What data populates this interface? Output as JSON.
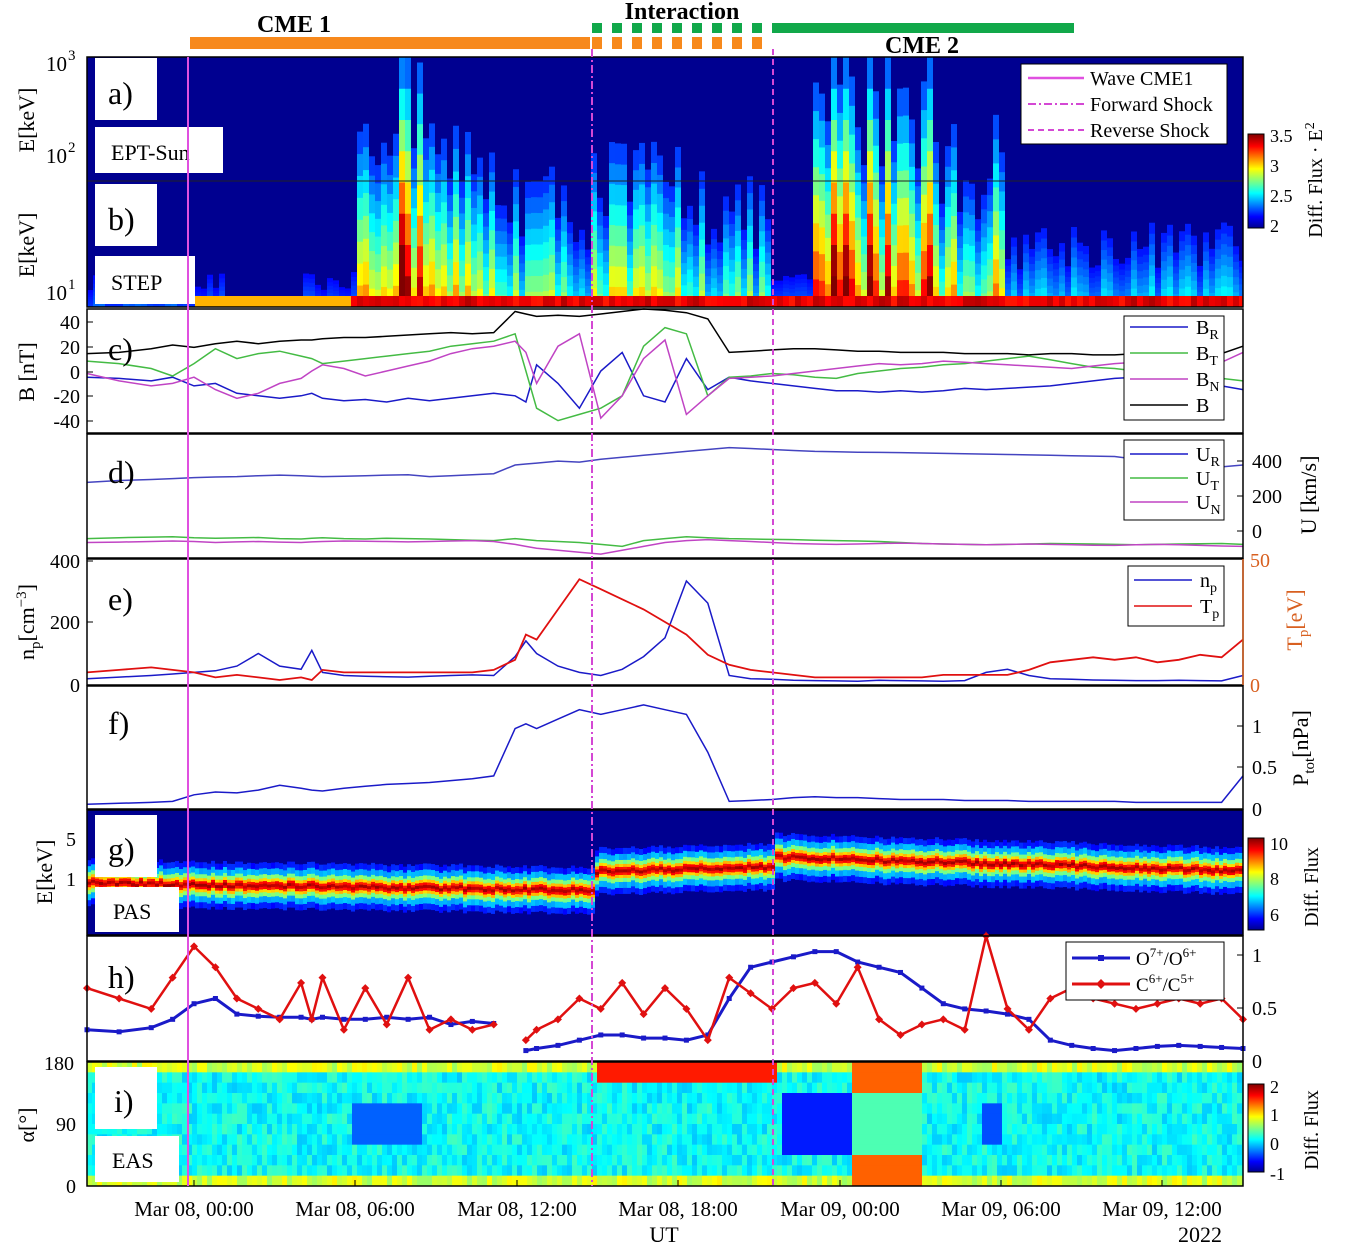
{
  "colors": {
    "cme1": "#f7891c",
    "cme2": "#11a84a",
    "wave": "#e050e0",
    "shock": "#d448d4",
    "red": "#e01010",
    "blue": "#1a1ac8",
    "green": "#44bb44",
    "purple": "#c044c4",
    "tp_axis": "#d86020"
  },
  "header": {
    "cme1_label": "CME 1",
    "interaction_label": "Interaction",
    "cme2_label": "CME 2"
  },
  "time_axis": {
    "tick_labels": [
      "Mar 08, 00:00",
      "Mar 08, 06:00",
      "Mar 08, 12:00",
      "Mar 08, 18:00",
      "Mar 09, 00:00",
      "Mar 09, 06:00",
      "Mar 09, 12:00"
    ],
    "xlabel": "UT",
    "year": "2022"
  },
  "events": {
    "wave_cme1": "Wave CME1",
    "forward_shock": "Forward Shock",
    "reverse_shock": "Reverse Shock"
  },
  "panels": {
    "a": {
      "letter": "a)",
      "instrument": "EPT-Sun",
      "ylabel": "E[keV]",
      "yticks": [
        "10",
        "10"
      ],
      "yexp": [
        "3",
        "2"
      ]
    },
    "b": {
      "letter": "b)",
      "instrument": "STEP",
      "ylabel": "E[keV]",
      "yticks": [
        "10"
      ],
      "yexp": [
        "1"
      ]
    },
    "ab_colorbar": {
      "label": "Diff. Flux · E",
      "label_exp": "2",
      "ticks": [
        "3.5",
        "3",
        "2.5",
        "2"
      ]
    },
    "c": {
      "letter": "c)",
      "ylabel": "B [nT]",
      "yticks": [
        "40",
        "20",
        "0",
        "-20",
        "-40"
      ],
      "legend": [
        {
          "base": "B",
          "sub": "R"
        },
        {
          "base": "B",
          "sub": "T"
        },
        {
          "base": "B",
          "sub": "N"
        },
        {
          "base": "B",
          "sub": ""
        }
      ]
    },
    "d": {
      "letter": "d)",
      "ylabel": "U [km/s]",
      "yticks": [
        "400",
        "200",
        "0"
      ],
      "legend": [
        {
          "base": "U",
          "sub": "R"
        },
        {
          "base": "U",
          "sub": "T"
        },
        {
          "base": "U",
          "sub": "N"
        }
      ]
    },
    "e": {
      "letter": "e)",
      "ylabel_base": "n",
      "ylabel_sub": "p",
      "ylabel_unit": "[cm",
      "ylabel_exp": "−3",
      "ylabel_close": "]",
      "yticks": [
        "400",
        "200",
        "0"
      ],
      "right_ylabel_base": "T",
      "right_ylabel_sub": "p",
      "right_ylabel_unit": "[eV]",
      "right_yticks": [
        "50",
        "0"
      ],
      "legend": [
        {
          "base": "n",
          "sub": "p"
        },
        {
          "base": "T",
          "sub": "p"
        }
      ]
    },
    "f": {
      "letter": "f)",
      "ylabel_base": "P",
      "ylabel_sub": "tot",
      "ylabel_unit": "[nPa]",
      "yticks": [
        "1",
        "0.5",
        "0"
      ]
    },
    "g": {
      "letter": "g)",
      "instrument": "PAS",
      "ylabel": "E[keV]",
      "yticks": [
        "5",
        "1"
      ],
      "colorbar": {
        "label": "Diff. Flux",
        "ticks": [
          "10",
          "8",
          "6"
        ]
      }
    },
    "h": {
      "letter": "h)",
      "yticks": [
        "1",
        "0.5",
        "0"
      ],
      "legend": [
        {
          "a": "O",
          "ae": "7+",
          "b": "O",
          "be": "6+"
        },
        {
          "a": "C",
          "ae": "6+",
          "b": "C",
          "be": "5+"
        }
      ]
    },
    "i": {
      "letter": "i)",
      "instrument": "EAS",
      "ylabel": "α[°]",
      "yticks": [
        "180",
        "90",
        "0"
      ],
      "colorbar": {
        "label": "Diff. Flux",
        "ticks": [
          "2",
          "1",
          "0",
          "-1"
        ]
      }
    }
  },
  "chart_data": {
    "type": "line",
    "title": "",
    "time_range": [
      "2022-03-07 18:00",
      "2022-03-09 16:30"
    ],
    "vertical_lines": [
      {
        "name": "Wave CME1",
        "time": "2022-03-07 23:50"
      },
      {
        "name": "Forward Shock",
        "time": "2022-03-08 14:40"
      },
      {
        "name": "Reverse Shock",
        "time": "2022-03-08 21:10"
      }
    ],
    "intervals": [
      {
        "name": "CME 1",
        "start": "2022-03-07 23:50",
        "end": "2022-03-08 14:40"
      },
      {
        "name": "Interaction",
        "start": "2022-03-08 14:40",
        "end": "2022-03-08 21:10"
      },
      {
        "name": "CME 2",
        "start": "2022-03-08 21:10",
        "end": "2022-03-09 08:40"
      }
    ],
    "x_hours": [
      0,
      3,
      6,
      8,
      10,
      12,
      14,
      16,
      18,
      20,
      21,
      22,
      24,
      26,
      28,
      30,
      32,
      34,
      36,
      38,
      40,
      41,
      42,
      44,
      46,
      48,
      50,
      52,
      54,
      56,
      58,
      60,
      62,
      64,
      66,
      68,
      70,
      72,
      74,
      76,
      78,
      80,
      82,
      84,
      86,
      88,
      90,
      92,
      94,
      96,
      98,
      100,
      102,
      104,
      106,
      108
    ],
    "series": [
      {
        "name": "B",
        "panel": "c",
        "values": [
          14,
          15,
          18,
          21,
          19,
          22,
          24,
          22,
          24,
          25,
          25,
          26,
          27,
          27,
          28,
          29,
          30,
          31,
          30,
          31,
          48,
          46,
          44,
          45,
          44,
          46,
          48,
          50,
          49,
          47,
          42,
          15,
          16,
          17,
          18,
          18,
          17,
          16,
          16,
          15,
          15,
          15,
          14,
          14,
          14,
          13,
          14,
          14,
          13,
          13,
          14,
          13,
          14,
          14,
          14,
          20
        ]
      },
      {
        "name": "BR",
        "panel": "c",
        "values": [
          -5,
          -6,
          -8,
          -5,
          -12,
          -10,
          -18,
          -20,
          -22,
          -20,
          -18,
          -22,
          -24,
          -23,
          -25,
          -22,
          -24,
          -22,
          -20,
          -18,
          -20,
          -25,
          5,
          -10,
          -30,
          0,
          15,
          -20,
          -25,
          10,
          -15,
          -5,
          -8,
          -10,
          -12,
          -14,
          -16,
          -16,
          -17,
          -16,
          -17,
          -16,
          -14,
          -15,
          -14,
          -13,
          -12,
          -10,
          -8,
          -6,
          -5,
          -4,
          -6,
          -10,
          -12,
          -15
        ]
      },
      {
        "name": "BT",
        "panel": "c",
        "values": [
          8,
          6,
          2,
          -4,
          6,
          18,
          10,
          14,
          16,
          12,
          10,
          6,
          8,
          10,
          12,
          14,
          16,
          20,
          22,
          24,
          30,
          0,
          -30,
          -40,
          -35,
          -30,
          -20,
          20,
          35,
          30,
          -20,
          -5,
          -4,
          -2,
          -3,
          -5,
          -6,
          -2,
          0,
          2,
          3,
          5,
          6,
          8,
          10,
          12,
          9,
          6,
          3,
          2,
          0,
          -3,
          -4,
          -5,
          -6,
          -8
        ]
      },
      {
        "name": "BN",
        "panel": "c",
        "values": [
          -2,
          -8,
          -12,
          -10,
          -5,
          -15,
          -22,
          -18,
          -10,
          -6,
          0,
          5,
          2,
          -4,
          0,
          4,
          8,
          14,
          18,
          20,
          24,
          15,
          -10,
          20,
          30,
          -38,
          -20,
          10,
          25,
          -35,
          -20,
          -6,
          -5,
          -4,
          -2,
          0,
          2,
          4,
          6,
          5,
          6,
          8,
          7,
          6,
          5,
          4,
          3,
          2,
          4,
          6,
          7,
          5,
          3,
          6,
          7,
          15
        ]
      },
      {
        "name": "UR",
        "panel": "d",
        "values": [
          310,
          320,
          325,
          330,
          335,
          338,
          340,
          345,
          348,
          345,
          342,
          340,
          342,
          345,
          348,
          350,
          340,
          345,
          350,
          355,
          400,
          405,
          410,
          420,
          415,
          430,
          440,
          450,
          460,
          470,
          480,
          490,
          485,
          480,
          475,
          470,
          468,
          466,
          465,
          464,
          462,
          460,
          458,
          456,
          454,
          452,
          450,
          448,
          446,
          444,
          430,
          410,
          400,
          395,
          390,
          400
        ]
      },
      {
        "name": "UT",
        "panel": "d",
        "values": [
          20,
          25,
          28,
          30,
          25,
          22,
          24,
          26,
          20,
          18,
          22,
          25,
          20,
          18,
          22,
          20,
          18,
          15,
          12,
          10,
          20,
          15,
          10,
          5,
          0,
          -10,
          -20,
          10,
          20,
          30,
          25,
          20,
          18,
          16,
          15,
          12,
          10,
          8,
          5,
          0,
          -5,
          -8,
          -10,
          -12,
          -10,
          -8,
          -5,
          -6,
          -8,
          -10,
          -12,
          -10,
          -8,
          -6,
          -5,
          -10
        ]
      },
      {
        "name": "UN",
        "panel": "d",
        "values": [
          0,
          2,
          5,
          8,
          5,
          0,
          3,
          5,
          2,
          0,
          3,
          5,
          8,
          6,
          5,
          3,
          5,
          8,
          10,
          5,
          -10,
          -20,
          -30,
          -40,
          -50,
          -60,
          -40,
          -20,
          0,
          10,
          15,
          10,
          5,
          0,
          -5,
          -8,
          -10,
          -8,
          -5,
          -3,
          -5,
          -8,
          -10,
          -12,
          -10,
          -8,
          -10,
          -12,
          -14,
          -15,
          -12,
          -10,
          -12,
          -15,
          -18,
          -20
        ]
      },
      {
        "name": "np",
        "panel": "e",
        "values": [
          20,
          25,
          30,
          35,
          40,
          45,
          60,
          100,
          60,
          50,
          110,
          40,
          30,
          28,
          26,
          25,
          28,
          30,
          32,
          30,
          90,
          140,
          100,
          60,
          40,
          30,
          50,
          90,
          150,
          330,
          260,
          30,
          20,
          18,
          15,
          14,
          13,
          12,
          15,
          14,
          13,
          12,
          14,
          40,
          50,
          30,
          20,
          18,
          16,
          15,
          14,
          14,
          15,
          14,
          13,
          30
        ]
      },
      {
        "name": "Tp",
        "panel": "e",
        "values": [
          5,
          6,
          7,
          6,
          5,
          3,
          4,
          3,
          2,
          3,
          2,
          6,
          5,
          5,
          5,
          5,
          5,
          5,
          5,
          6,
          10,
          20,
          18,
          30,
          42,
          38,
          34,
          30,
          25,
          20,
          12,
          8,
          6,
          5,
          4,
          3,
          3,
          3,
          3,
          3,
          3,
          4,
          4,
          4,
          4,
          6,
          9,
          10,
          11,
          10,
          11,
          9,
          10,
          12,
          11,
          18
        ]
      },
      {
        "name": "Ptot",
        "panel": "f",
        "values": [
          0.05,
          0.06,
          0.07,
          0.08,
          0.15,
          0.18,
          0.17,
          0.2,
          0.25,
          0.22,
          0.2,
          0.19,
          0.22,
          0.24,
          0.26,
          0.27,
          0.28,
          0.3,
          0.32,
          0.35,
          0.85,
          0.9,
          0.85,
          0.95,
          1.05,
          1.0,
          1.05,
          1.1,
          1.05,
          1.0,
          0.6,
          0.08,
          0.09,
          0.1,
          0.12,
          0.13,
          0.12,
          0.12,
          0.11,
          0.1,
          0.1,
          0.1,
          0.09,
          0.09,
          0.09,
          0.08,
          0.08,
          0.08,
          0.08,
          0.08,
          0.07,
          0.07,
          0.07,
          0.07,
          0.07,
          0.35
        ]
      },
      {
        "name": "O7+/O6+",
        "panel": "h",
        "values": [
          0.3,
          0.28,
          0.32,
          0.4,
          0.55,
          0.6,
          0.45,
          0.43,
          0.42,
          0.42,
          0.4,
          0.42,
          0.4,
          0.4,
          0.42,
          0.4,
          0.42,
          0.35,
          0.38,
          0.36,
          null,
          0.1,
          0.12,
          0.15,
          0.2,
          0.25,
          0.25,
          0.22,
          0.22,
          0.2,
          0.25,
          0.6,
          0.9,
          0.95,
          1.0,
          1.05,
          1.05,
          0.95,
          0.9,
          0.85,
          0.7,
          0.55,
          0.5,
          0.48,
          0.45,
          0.4,
          0.2,
          0.15,
          0.12,
          0.1,
          0.12,
          0.14,
          0.15,
          0.14,
          0.13,
          0.12
        ]
      },
      {
        "name": "C6+/C5+",
        "panel": "h",
        "values": [
          0.7,
          0.6,
          0.5,
          0.8,
          1.1,
          0.9,
          0.6,
          0.5,
          0.4,
          0.75,
          0.4,
          0.8,
          0.3,
          0.7,
          0.35,
          0.8,
          0.3,
          0.4,
          0.3,
          0.35,
          null,
          0.2,
          0.3,
          0.4,
          0.6,
          0.5,
          0.75,
          0.45,
          0.7,
          0.5,
          0.2,
          0.8,
          0.65,
          0.5,
          0.7,
          0.75,
          0.55,
          0.9,
          0.4,
          0.25,
          0.35,
          0.4,
          0.3,
          1.2,
          0.5,
          0.3,
          0.6,
          0.7,
          0.6,
          0.55,
          0.5,
          0.55,
          0.6,
          0.55,
          0.6,
          0.4
        ]
      }
    ]
  }
}
